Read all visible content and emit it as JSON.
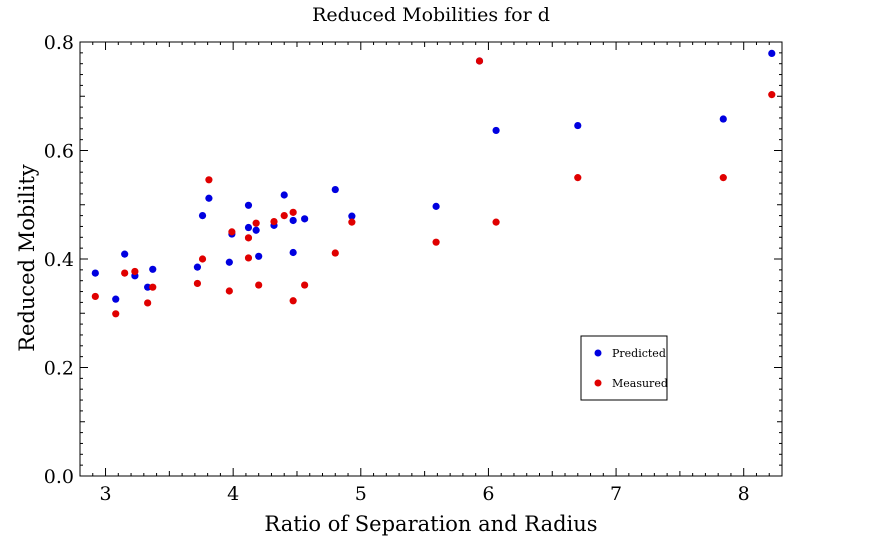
{
  "chart_data": {
    "type": "scatter",
    "title": "Reduced Mobilities for d",
    "xlabel": "Ratio of Separation and Radius",
    "ylabel": "Reduced Mobility",
    "xlim": [
      2.8,
      8.3
    ],
    "ylim": [
      0.0,
      0.8
    ],
    "xticks": [
      3,
      4,
      5,
      6,
      7,
      8
    ],
    "yticks": [
      0.0,
      0.2,
      0.4,
      0.6,
      0.8
    ],
    "xtick_labels": [
      "3",
      "4",
      "5",
      "6",
      "7",
      "8"
    ],
    "ytick_labels": [
      "0.0",
      "0.2",
      "0.4",
      "0.6",
      "0.8"
    ],
    "legend_position": "lower-right",
    "grid": false,
    "series": [
      {
        "name": "Predicted",
        "color": "#0000e0",
        "points": [
          [
            2.92,
            0.374
          ],
          [
            3.08,
            0.326
          ],
          [
            3.15,
            0.409
          ],
          [
            3.23,
            0.369
          ],
          [
            3.33,
            0.348
          ],
          [
            3.37,
            0.381
          ],
          [
            3.72,
            0.385
          ],
          [
            3.76,
            0.48
          ],
          [
            3.81,
            0.512
          ],
          [
            3.97,
            0.394
          ],
          [
            3.99,
            0.446
          ],
          [
            4.12,
            0.458
          ],
          [
            4.12,
            0.499
          ],
          [
            4.18,
            0.453
          ],
          [
            4.2,
            0.405
          ],
          [
            4.32,
            0.462
          ],
          [
            4.4,
            0.518
          ],
          [
            4.47,
            0.412
          ],
          [
            4.47,
            0.471
          ],
          [
            4.56,
            0.474
          ],
          [
            4.8,
            0.528
          ],
          [
            4.93,
            0.479
          ],
          [
            5.59,
            0.497
          ],
          [
            5.93,
            0.765
          ],
          [
            6.06,
            0.637
          ],
          [
            6.7,
            0.646
          ],
          [
            7.84,
            0.658
          ],
          [
            8.22,
            0.779
          ]
        ]
      },
      {
        "name": "Measured",
        "color": "#e00000",
        "points": [
          [
            2.92,
            0.331
          ],
          [
            3.08,
            0.299
          ],
          [
            3.15,
            0.374
          ],
          [
            3.23,
            0.377
          ],
          [
            3.33,
            0.319
          ],
          [
            3.37,
            0.348
          ],
          [
            3.72,
            0.355
          ],
          [
            3.76,
            0.4
          ],
          [
            3.81,
            0.546
          ],
          [
            3.97,
            0.341
          ],
          [
            3.99,
            0.45
          ],
          [
            4.12,
            0.439
          ],
          [
            4.12,
            0.402
          ],
          [
            4.18,
            0.466
          ],
          [
            4.2,
            0.352
          ],
          [
            4.32,
            0.469
          ],
          [
            4.4,
            0.48
          ],
          [
            4.47,
            0.323
          ],
          [
            4.47,
            0.486
          ],
          [
            4.56,
            0.352
          ],
          [
            4.8,
            0.411
          ],
          [
            4.93,
            0.468
          ],
          [
            5.59,
            0.431
          ],
          [
            5.93,
            0.765
          ],
          [
            6.06,
            0.468
          ],
          [
            6.7,
            0.55
          ],
          [
            7.84,
            0.55
          ],
          [
            8.22,
            0.703
          ]
        ]
      }
    ]
  }
}
